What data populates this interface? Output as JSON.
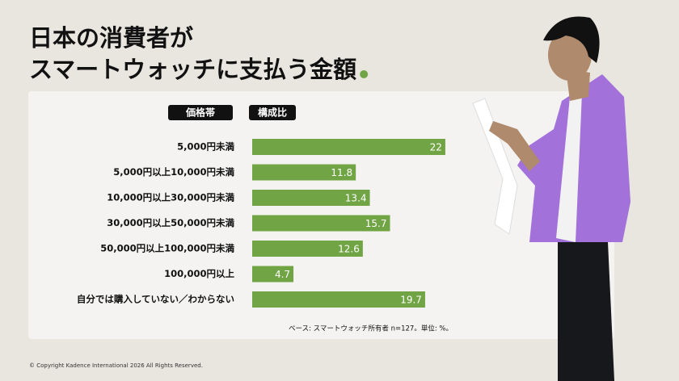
{
  "chart_data": {
    "type": "bar",
    "title": [
      "日本の消費者が",
      "スマートウォッチに支払う金額"
    ],
    "category_header": "価格帯",
    "value_header": "構成比",
    "categories": [
      "5,000円未満",
      "5,000円以上10,000円未満",
      "10,000円以上30,000円未満",
      "30,000円以上50,000円未満",
      "50,000円以上100,000円未満",
      "100,000円以上",
      "自分では購入していない／わからない"
    ],
    "values": [
      22,
      11.8,
      13.4,
      15.7,
      12.6,
      4.7,
      19.7
    ],
    "color": "#70a444",
    "note": "ベース: スマートウォッチ所有者 n=127。単位: %。"
  },
  "footer": "© Copyright Kadence International 2026 All Rights Reserved."
}
